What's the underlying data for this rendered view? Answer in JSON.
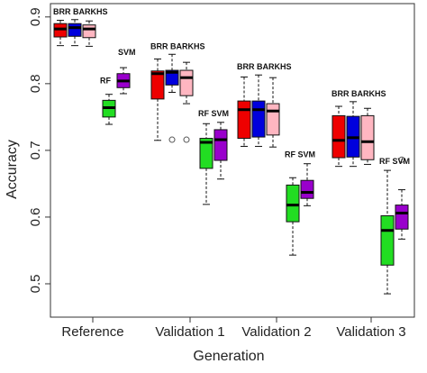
{
  "chart_data": {
    "type": "box",
    "xlabel": "Generation",
    "ylabel": "Accuracy",
    "ylim": [
      0.45,
      0.92
    ],
    "yticks": [
      0.5,
      0.6,
      0.7,
      0.8,
      0.9
    ],
    "groups": [
      "Reference",
      "Validation 1",
      "Validation 2",
      "Validation 3"
    ],
    "series": [
      {
        "name": "BRR",
        "color": "#ee0000"
      },
      {
        "name": "BA",
        "color": "#0000dd"
      },
      {
        "name": "RKHS",
        "color": "#ffb6c1"
      },
      {
        "name": "RF",
        "color": "#22dd22"
      },
      {
        "name": "SVM",
        "color": "#9900cc"
      }
    ],
    "boxes": [
      [
        {
          "series": "BRR",
          "min": 0.857,
          "q1": 0.87,
          "median": 0.882,
          "q3": 0.89,
          "max": 0.895,
          "outliers": []
        },
        {
          "series": "BA",
          "min": 0.857,
          "q1": 0.871,
          "median": 0.884,
          "q3": 0.89,
          "max": 0.896,
          "outliers": []
        },
        {
          "series": "RKHS",
          "min": 0.856,
          "q1": 0.869,
          "median": 0.882,
          "q3": 0.888,
          "max": 0.894,
          "outliers": []
        },
        {
          "series": "RF",
          "min": 0.739,
          "q1": 0.75,
          "median": 0.764,
          "q3": 0.775,
          "max": 0.784,
          "outliers": []
        },
        {
          "series": "SVM",
          "min": 0.785,
          "q1": 0.794,
          "median": 0.804,
          "q3": 0.815,
          "max": 0.824,
          "outliers": []
        }
      ],
      [
        {
          "series": "BRR",
          "min": 0.715,
          "q1": 0.777,
          "median": 0.815,
          "q3": 0.819,
          "max": 0.837,
          "outliers": []
        },
        {
          "series": "BA",
          "min": 0.787,
          "q1": 0.798,
          "median": 0.817,
          "q3": 0.82,
          "max": 0.844,
          "outliers": [
            0.716
          ]
        },
        {
          "series": "RKHS",
          "min": 0.77,
          "q1": 0.782,
          "median": 0.809,
          "q3": 0.82,
          "max": 0.832,
          "outliers": [
            0.716
          ]
        },
        {
          "series": "RF",
          "min": 0.619,
          "q1": 0.673,
          "median": 0.712,
          "q3": 0.718,
          "max": 0.74,
          "outliers": []
        },
        {
          "series": "SVM",
          "min": 0.657,
          "q1": 0.685,
          "median": 0.716,
          "q3": 0.731,
          "max": 0.742,
          "outliers": []
        }
      ],
      [
        {
          "series": "BRR",
          "min": 0.706,
          "q1": 0.718,
          "median": 0.761,
          "q3": 0.774,
          "max": 0.81,
          "outliers": []
        },
        {
          "series": "BA",
          "min": 0.706,
          "q1": 0.72,
          "median": 0.761,
          "q3": 0.774,
          "max": 0.813,
          "outliers": []
        },
        {
          "series": "RKHS",
          "min": 0.705,
          "q1": 0.723,
          "median": 0.759,
          "q3": 0.77,
          "max": 0.809,
          "outliers": []
        },
        {
          "series": "RF",
          "min": 0.543,
          "q1": 0.593,
          "median": 0.618,
          "q3": 0.648,
          "max": 0.659,
          "outliers": []
        },
        {
          "series": "SVM",
          "min": 0.617,
          "q1": 0.628,
          "median": 0.637,
          "q3": 0.655,
          "max": 0.68,
          "outliers": []
        }
      ],
      [
        {
          "series": "BRR",
          "min": 0.676,
          "q1": 0.689,
          "median": 0.715,
          "q3": 0.752,
          "max": 0.766,
          "outliers": []
        },
        {
          "series": "BA",
          "min": 0.676,
          "q1": 0.69,
          "median": 0.719,
          "q3": 0.751,
          "max": 0.773,
          "outliers": []
        },
        {
          "series": "RKHS",
          "min": 0.679,
          "q1": 0.686,
          "median": 0.713,
          "q3": 0.752,
          "max": 0.763,
          "outliers": []
        },
        {
          "series": "RF",
          "min": 0.485,
          "q1": 0.528,
          "median": 0.58,
          "q3": 0.602,
          "max": 0.67,
          "outliers": []
        },
        {
          "series": "SVM",
          "min": 0.567,
          "q1": 0.582,
          "median": 0.606,
          "q3": 0.618,
          "max": 0.641,
          "outliers": [
            0.686
          ]
        }
      ]
    ],
    "annotations": [
      {
        "group": 0,
        "type": "top",
        "text": "BRR BARKHS"
      },
      {
        "group": 0,
        "type": "rf",
        "text": "RF"
      },
      {
        "group": 0,
        "type": "svm",
        "text": "SVM"
      },
      {
        "group": 1,
        "type": "top",
        "text": "BRR BARKHS"
      },
      {
        "group": 1,
        "type": "rfsvm",
        "text": "RF SVM"
      },
      {
        "group": 2,
        "type": "top",
        "text": "BRR BARKHS"
      },
      {
        "group": 2,
        "type": "rfsvm",
        "text": "RF SVM"
      },
      {
        "group": 3,
        "type": "top",
        "text": "BRR BARKHS"
      },
      {
        "group": 3,
        "type": "rfsvm",
        "text": "RF SVM"
      }
    ]
  }
}
